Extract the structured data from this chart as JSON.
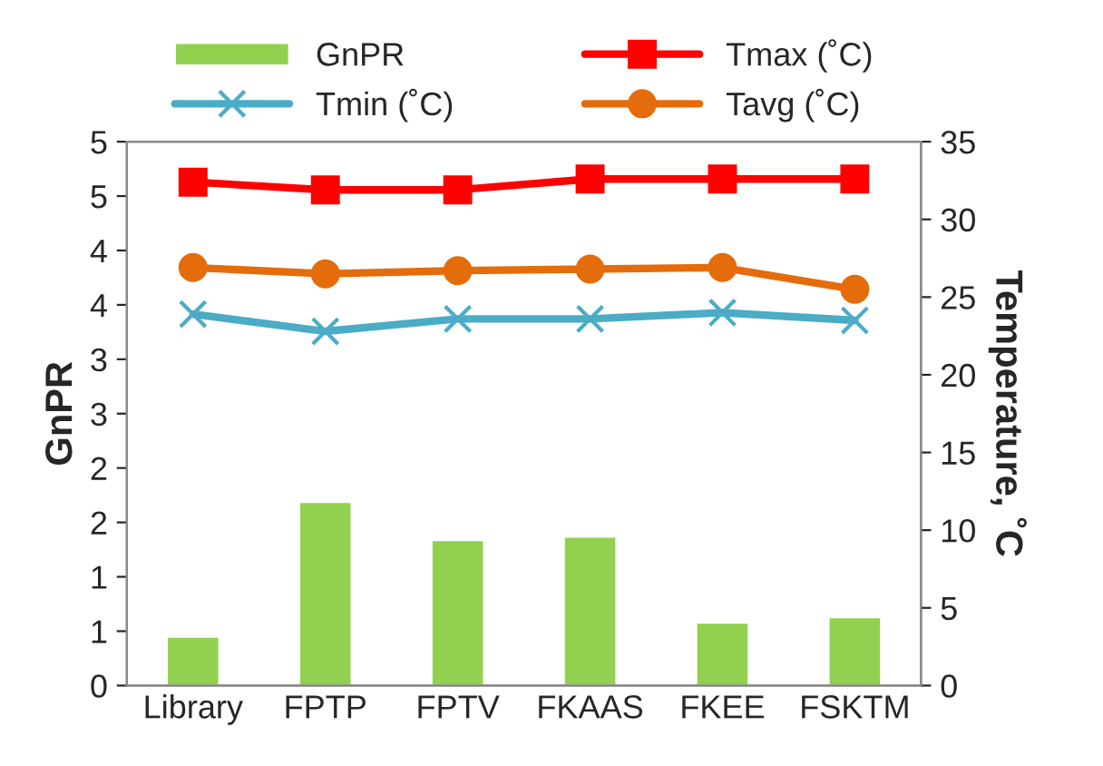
{
  "chart_data": {
    "type": "bar",
    "categories": [
      "Library",
      "FPTP",
      "FPTV",
      "FKAAS",
      "FKEE",
      "FSKTM"
    ],
    "ylabel": "GnPR",
    "y2label": "Temperature, ˚C",
    "ylim": [
      0,
      5
    ],
    "yticks": [
      0,
      {
        "value": 0.5,
        "label": "1"
      },
      1,
      {
        "value": 1.5,
        "label": "2"
      },
      2,
      {
        "value": 2.5,
        "label": "3"
      },
      3,
      {
        "value": 3.5,
        "label": "4"
      },
      4,
      {
        "value": 4.5,
        "label": "5"
      },
      5
    ],
    "y2lim": [
      0,
      35
    ],
    "y2ticks": [
      0,
      5,
      10,
      15,
      20,
      25,
      30,
      35
    ],
    "legend": "top",
    "grid": false,
    "series": [
      {
        "name": "GnPR",
        "color": "#92d050",
        "values": [
          0.45,
          1.69,
          1.34,
          1.37,
          0.58,
          0.63
        ]
      },
      {
        "name": "Tmax (˚C)",
        "type": "line",
        "axis": "y2",
        "color": "#ff0000",
        "marker": "square",
        "values": [
          32.4,
          31.9,
          31.9,
          32.6,
          32.6,
          32.6
        ]
      },
      {
        "name": "Tmin (˚C)",
        "type": "line",
        "axis": "y2",
        "color": "#4bacc6",
        "marker": "cross",
        "values": [
          23.9,
          22.8,
          23.6,
          23.6,
          24.0,
          23.5
        ]
      },
      {
        "name": "Tavg (˚C)",
        "type": "line",
        "axis": "y2",
        "color": "#e46c0a",
        "marker": "circle",
        "values": [
          26.9,
          26.5,
          26.7,
          26.8,
          26.9,
          25.5
        ]
      }
    ]
  }
}
